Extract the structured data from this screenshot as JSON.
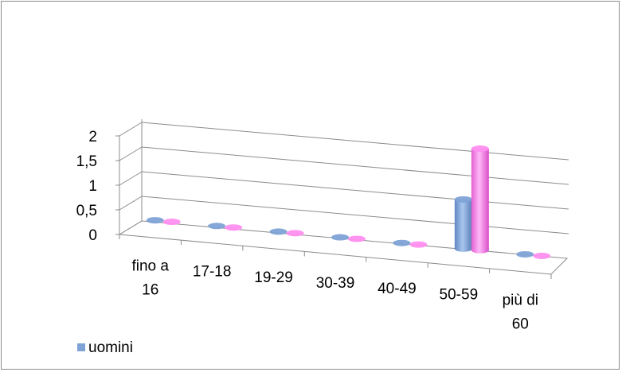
{
  "chart_data": {
    "type": "bar",
    "style": "3d-cylinder",
    "categories": [
      "fino a 16",
      "17-18",
      "19-29",
      "30-39",
      "40-49",
      "50-59",
      "più di 60"
    ],
    "category_label_lines": [
      [
        "fino a",
        "16"
      ],
      [
        "17-18"
      ],
      [
        "19-29"
      ],
      [
        "30-39"
      ],
      [
        "40-49"
      ],
      [
        "50-59"
      ],
      [
        "più di",
        "60"
      ]
    ],
    "series": [
      {
        "name": "uomini",
        "values": [
          0,
          0,
          0,
          0,
          0,
          1,
          0
        ],
        "color": "#7ea3d6"
      },
      {
        "name": "",
        "values": [
          0,
          0,
          0,
          0,
          0,
          2,
          0
        ],
        "color": "#ff8ef0"
      }
    ],
    "y_ticks": [
      "0",
      "0,5",
      "1",
      "1,5",
      "2"
    ],
    "ylim": [
      0,
      2
    ],
    "title": "",
    "xlabel": "",
    "ylabel": "",
    "grid": true,
    "legend": {
      "placement": "bottom-left",
      "entries": [
        "uomini"
      ]
    }
  }
}
